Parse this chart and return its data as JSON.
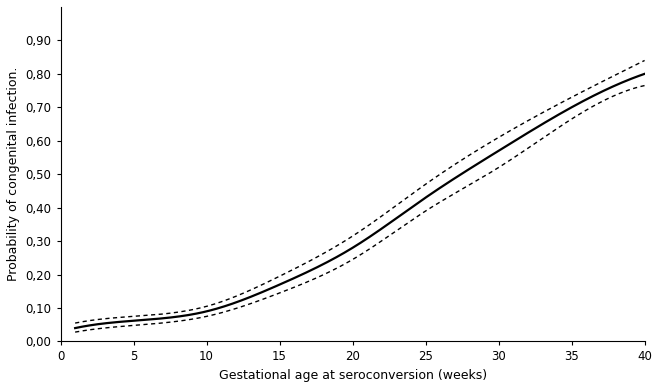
{
  "title": "",
  "xlabel": "Gestational age at seroconversion (weeks)",
  "ylabel": "Probability of congenital infection.",
  "xlim": [
    0,
    40
  ],
  "ylim": [
    0.0,
    1.0
  ],
  "xticks": [
    0,
    5,
    10,
    15,
    20,
    25,
    30,
    35,
    40
  ],
  "yticks": [
    0.0,
    0.1,
    0.2,
    0.3,
    0.4,
    0.5,
    0.6,
    0.7,
    0.8,
    0.9
  ],
  "main_color": "#000000",
  "ci_color": "#000000",
  "background_color": "#ffffff",
  "curve_a": 0.001,
  "curve_b": 0.00048,
  "curve_exp": 2.05,
  "ci_upper_a": 0.001,
  "ci_upper_b": 0.00065,
  "ci_upper_exp": 2.05,
  "ci_lower_a": 0.001,
  "ci_lower_b": 0.00033,
  "ci_lower_exp": 2.05
}
